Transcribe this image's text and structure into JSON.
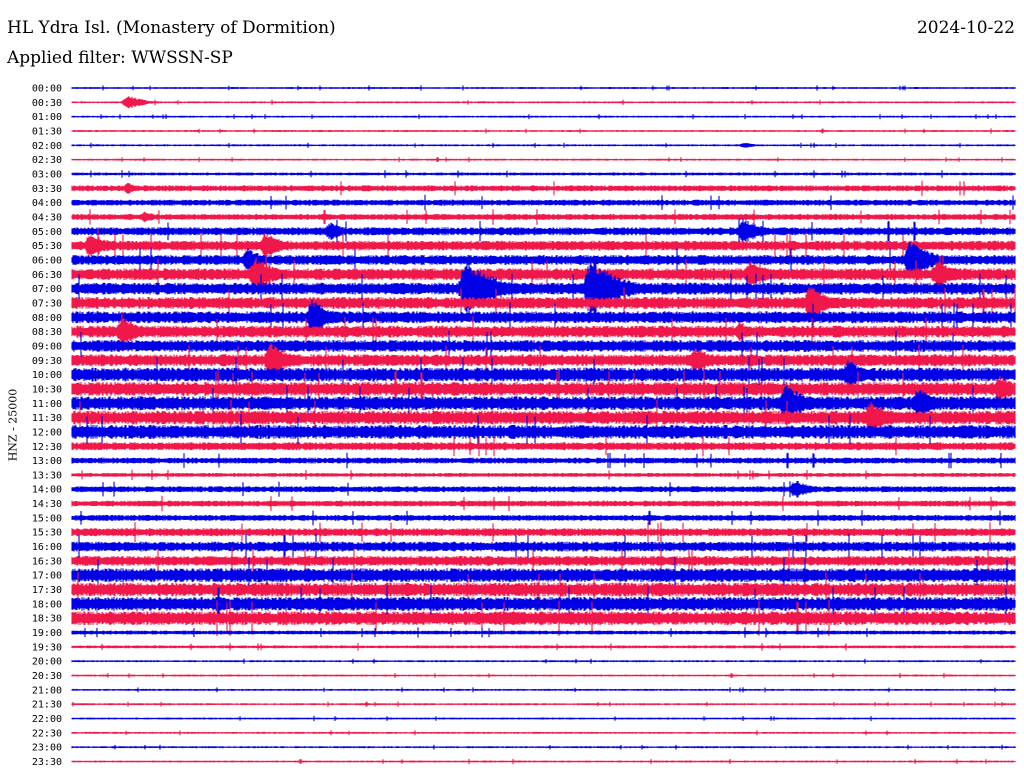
{
  "header": {
    "station": "HL Ydra Isl. (Monastery of Dormition)",
    "date": "2024-10-22",
    "filter": "Applied filter: WWSSN-SP",
    "y_axis_label": "HNZ - 25000"
  },
  "colors": {
    "trace_a": "#0000e6",
    "trace_b": "#f0184a",
    "axis": "#000000"
  },
  "chart_data": {
    "type": "line",
    "title": "HL Ydra Isl. (Monastery of Dormition)",
    "ylabel": "HNZ - 25000",
    "grid": false,
    "series": [
      {
        "color": "#0000e6",
        "values": []
      },
      {
        "color": "#f0184a",
        "values": []
      }
    ],
    "row_labels": [
      "00:00",
      "00:30",
      "01:00",
      "01:30",
      "02:00",
      "02:30",
      "03:00",
      "03:30",
      "04:00",
      "04:30",
      "05:00",
      "05:30",
      "06:00",
      "06:30",
      "07:00",
      "07:30",
      "08:00",
      "08:30",
      "09:00",
      "09:30",
      "10:00",
      "10:30",
      "11:00",
      "11:30",
      "12:00",
      "12:30",
      "13:00",
      "13:30",
      "14:00",
      "14:30",
      "15:00",
      "15:30",
      "16:00",
      "16:30",
      "17:00",
      "17:30",
      "18:00",
      "18:30",
      "19:00",
      "19:30",
      "20:00",
      "20:30",
      "21:00",
      "21:30",
      "22:00",
      "22:30",
      "23:00",
      "23:30"
    ],
    "noise_levels": [
      1,
      1,
      1,
      1,
      1,
      1,
      1.5,
      3,
      3,
      3,
      4,
      5,
      5,
      6,
      6,
      6,
      6,
      6,
      6,
      6,
      7,
      7,
      7,
      7,
      7,
      4,
      3,
      2,
      3,
      3,
      3,
      4,
      5,
      5,
      7,
      7,
      7,
      7,
      2,
      1.5,
      1,
      1,
      1,
      1,
      1,
      1,
      1,
      1
    ],
    "events": [
      {
        "row": 1,
        "x": 128,
        "amp": 8
      },
      {
        "row": 4,
        "x": 745,
        "amp": 3
      },
      {
        "row": 7,
        "x": 128,
        "amp": 6
      },
      {
        "row": 9,
        "x": 145,
        "amp": 6
      },
      {
        "row": 10,
        "x": 330,
        "amp": 10
      },
      {
        "row": 10,
        "x": 743,
        "amp": 14
      },
      {
        "row": 11,
        "x": 90,
        "amp": 14
      },
      {
        "row": 11,
        "x": 265,
        "amp": 14
      },
      {
        "row": 12,
        "x": 248,
        "amp": 12
      },
      {
        "row": 12,
        "x": 910,
        "amp": 20
      },
      {
        "row": 13,
        "x": 255,
        "amp": 18
      },
      {
        "row": 13,
        "x": 750,
        "amp": 16
      },
      {
        "row": 13,
        "x": 937,
        "amp": 16
      },
      {
        "row": 14,
        "x": 465,
        "amp": 30
      },
      {
        "row": 14,
        "x": 590,
        "amp": 30
      },
      {
        "row": 15,
        "x": 810,
        "amp": 18
      },
      {
        "row": 16,
        "x": 312,
        "amp": 18
      },
      {
        "row": 17,
        "x": 122,
        "amp": 16
      },
      {
        "row": 17,
        "x": 740,
        "amp": 10
      },
      {
        "row": 19,
        "x": 270,
        "amp": 18
      },
      {
        "row": 19,
        "x": 695,
        "amp": 14
      },
      {
        "row": 20,
        "x": 848,
        "amp": 16
      },
      {
        "row": 21,
        "x": 1000,
        "amp": 14
      },
      {
        "row": 22,
        "x": 785,
        "amp": 20
      },
      {
        "row": 22,
        "x": 918,
        "amp": 16
      },
      {
        "row": 23,
        "x": 870,
        "amp": 18
      },
      {
        "row": 28,
        "x": 795,
        "amp": 10
      }
    ]
  }
}
